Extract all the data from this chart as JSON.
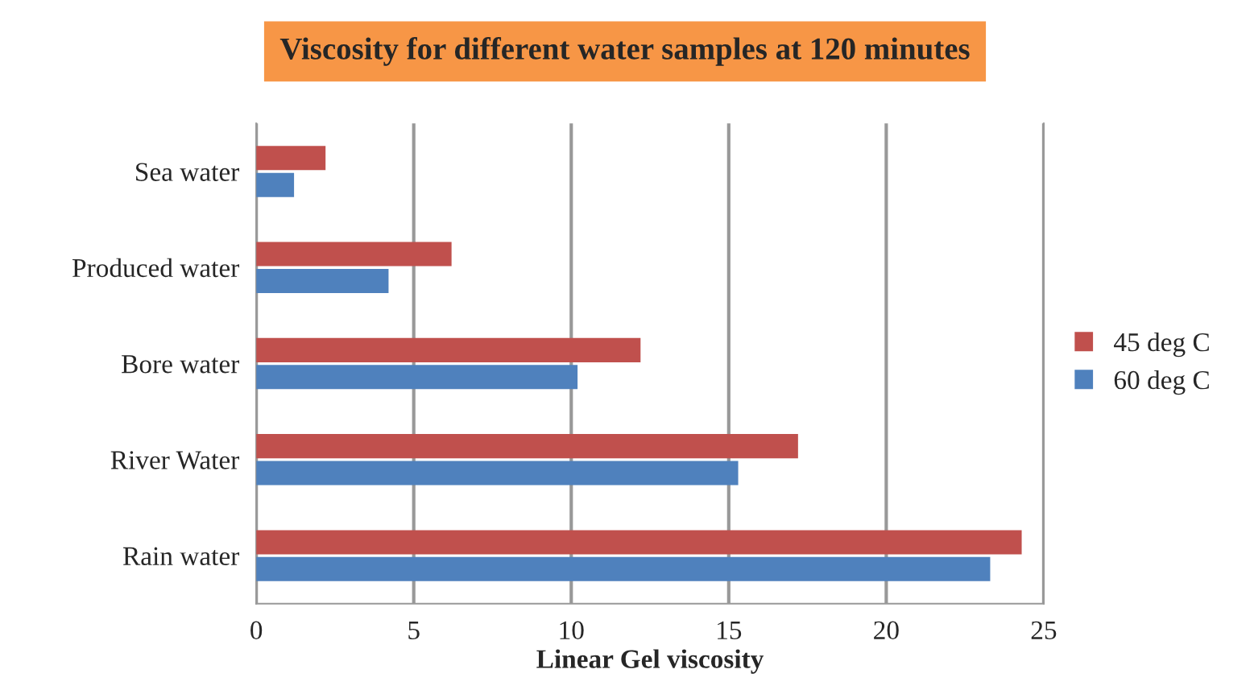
{
  "chart_data": {
    "type": "bar",
    "orientation": "horizontal",
    "title": "Viscosity for different water samples at 120 minutes",
    "xlabel": "Linear Gel viscosity",
    "categories": [
      "Sea water",
      "Produced water",
      "Bore water",
      "River Water",
      "Rain water"
    ],
    "series": [
      {
        "name": "45 deg C",
        "color": "#c0504d",
        "values": [
          2.2,
          6.2,
          12.2,
          17.2,
          24.3
        ]
      },
      {
        "name": "60 deg C",
        "color": "#4f81bd",
        "values": [
          1.2,
          4.2,
          10.2,
          15.3,
          23.3
        ]
      }
    ],
    "xlim": [
      0,
      25
    ],
    "xticks": [
      0,
      5,
      10,
      15,
      20,
      25
    ],
    "grid": "x",
    "legend": "right"
  }
}
